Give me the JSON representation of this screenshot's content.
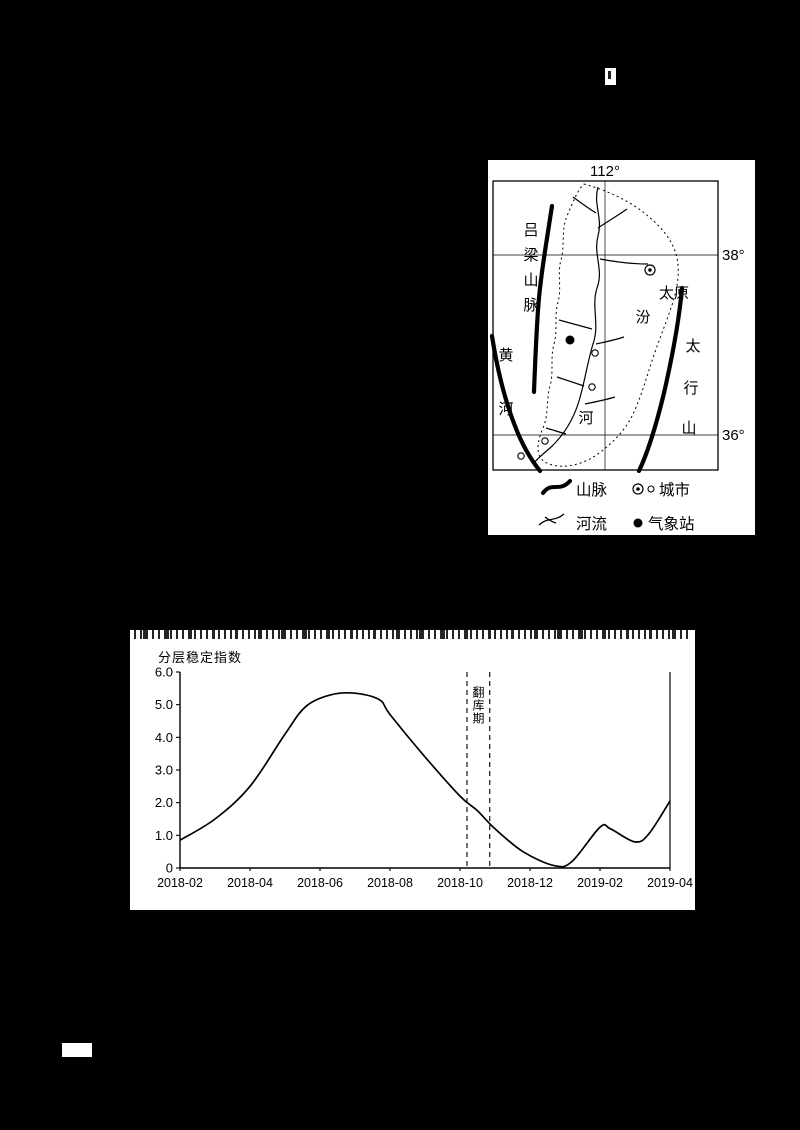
{
  "colors": {
    "background": "#000000",
    "panel": "#ffffff",
    "ink": "#000000"
  },
  "map_figure": {
    "longitude_label": "112°",
    "lat_label_38": "38°",
    "lat_label_36": "36°",
    "lvliang_chars": [
      "吕",
      "梁",
      "山",
      "脉"
    ],
    "yellow_river_chars": [
      "黄",
      "河"
    ],
    "fen_river_chars": [
      "汾",
      "河"
    ],
    "taihang_chars": [
      "太",
      "行",
      "山"
    ],
    "taiyuan_label": "太原",
    "legend": {
      "mountain": "山脉",
      "city": "城市",
      "river": "河流",
      "station": "气象站"
    }
  },
  "chart_data": {
    "type": "line",
    "title": "",
    "ylabel": "分层稳定指数",
    "xlabel": "",
    "x_tick_labels": [
      "2018-02",
      "2018-04",
      "2018-06",
      "2018-08",
      "2018-10",
      "2018-12",
      "2019-02",
      "2019-04"
    ],
    "y_tick_labels": [
      "0",
      "1.0",
      "2.0",
      "3.0",
      "4.0",
      "5.0",
      "6.0"
    ],
    "ylim": [
      0,
      6
    ],
    "xlim_months": [
      0,
      14
    ],
    "grid": "off",
    "points": [
      [
        0,
        0.85
      ],
      [
        1,
        1.5
      ],
      [
        2,
        2.5
      ],
      [
        3,
        4.1
      ],
      [
        3.6,
        4.95
      ],
      [
        4.3,
        5.3
      ],
      [
        5,
        5.35
      ],
      [
        5.7,
        5.15
      ],
      [
        6,
        4.7
      ],
      [
        7,
        3.4
      ],
      [
        8,
        2.2
      ],
      [
        8.5,
        1.75
      ],
      [
        9,
        1.2
      ],
      [
        9.8,
        0.5
      ],
      [
        10.7,
        0.07
      ],
      [
        11.2,
        0.2
      ],
      [
        12,
        1.25
      ],
      [
        12.3,
        1.2
      ],
      [
        13,
        0.8
      ],
      [
        13.4,
        1.05
      ],
      [
        14,
        2.05
      ]
    ],
    "annotation": {
      "label": "翻库期",
      "x1_month": 8.2,
      "x2_month": 8.85
    }
  }
}
